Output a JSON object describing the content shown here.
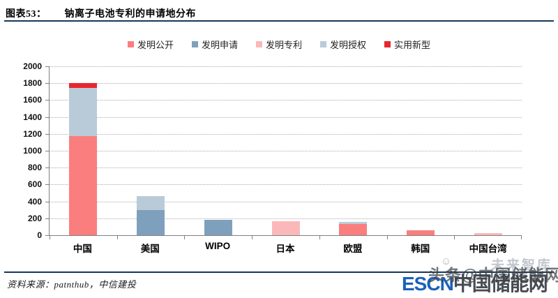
{
  "header": {
    "fig_label": "图表53：",
    "title": "钠离子电池专利的申请地分布"
  },
  "footer": {
    "source": "资料来源：patnthub，中信建投"
  },
  "watermark": {
    "ghost": "未来智库",
    "smiley": "☺",
    "escn": "ESCN",
    "escn_suffix": "中国储能网",
    "overlay": "头条@中国储能网"
  },
  "colors": {
    "divider_navy": "#16365c",
    "axis_gray": "#808080",
    "gridline_gray": "#ababab",
    "escn_blue": "#1b62b8"
  },
  "chart_data": {
    "type": "bar",
    "stacked": true,
    "title": "钠离子电池专利的申请地分布",
    "categories": [
      "中国",
      "美国",
      "WIPO",
      "日本",
      "欧盟",
      "韩国",
      "中国台湾"
    ],
    "series": [
      {
        "name": "发明公开",
        "color": "#fa7e7e",
        "values": [
          1175,
          0,
          0,
          0,
          130,
          60,
          0
        ]
      },
      {
        "name": "发明申请",
        "color": "#7ea0bd",
        "values": [
          0,
          300,
          185,
          0,
          0,
          0,
          0
        ]
      },
      {
        "name": "发明专利",
        "color": "#fbb8b8",
        "values": [
          0,
          0,
          0,
          165,
          0,
          0,
          25
        ]
      },
      {
        "name": "发明授权",
        "color": "#b9cbd8",
        "values": [
          565,
          165,
          0,
          0,
          30,
          0,
          0
        ]
      },
      {
        "name": "实用新型",
        "color": "#e8262d",
        "values": [
          60,
          0,
          0,
          0,
          0,
          0,
          0
        ]
      }
    ],
    "xlabel": "",
    "ylabel": "",
    "ylim": [
      0,
      2000
    ],
    "yticks": [
      0,
      200,
      400,
      600,
      800,
      1000,
      1200,
      1400,
      1600,
      1800,
      2000
    ],
    "legend_position": "top",
    "grid": "horizontal-dotted"
  }
}
